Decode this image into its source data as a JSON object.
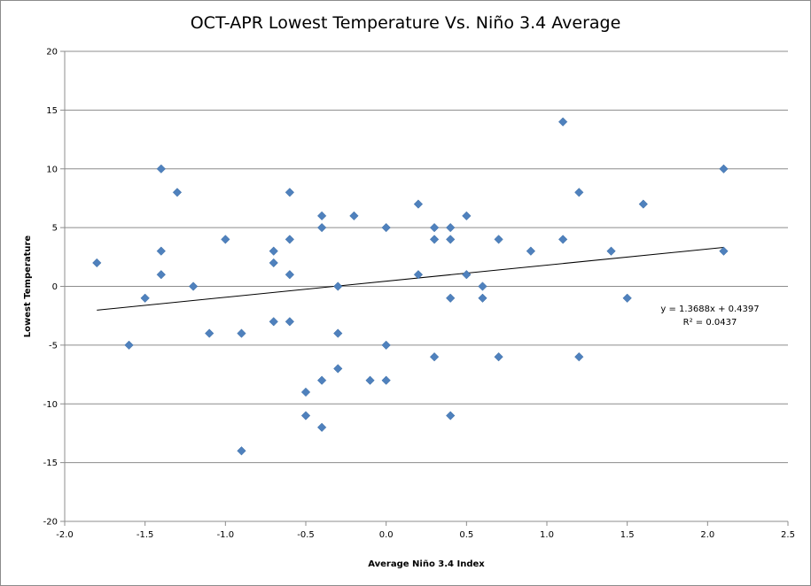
{
  "chart_data": {
    "type": "scatter",
    "title": "OCT-APR Lowest Temperature Vs. Niño 3.4 Average",
    "xlabel": "Average Niño 3.4 Index",
    "ylabel": "Lowest Temperature",
    "xlim": [
      -2.0,
      2.5
    ],
    "ylim": [
      -20,
      20
    ],
    "x_ticks": [
      -2.0,
      -1.5,
      -1.0,
      -0.5,
      0.0,
      0.5,
      1.0,
      1.5,
      2.0,
      2.5
    ],
    "x_tick_labels": [
      "-2.0",
      "-1.5",
      "-1.0",
      "-0.5",
      "0.0",
      "0.5",
      "1.0",
      "1.5",
      "2.0",
      "2.5"
    ],
    "y_ticks": [
      -20,
      -15,
      -10,
      -5,
      0,
      5,
      10,
      15,
      20
    ],
    "y_tick_labels": [
      "-20",
      "-15",
      "-10",
      "-5",
      "0",
      "5",
      "10",
      "15",
      "20"
    ],
    "grid": "horizontal",
    "marker_color": "#4f81bd",
    "points": [
      {
        "x": -1.8,
        "y": 2
      },
      {
        "x": -1.6,
        "y": -5
      },
      {
        "x": -1.5,
        "y": -1
      },
      {
        "x": -1.4,
        "y": 10
      },
      {
        "x": -1.4,
        "y": 3
      },
      {
        "x": -1.4,
        "y": 1
      },
      {
        "x": -1.3,
        "y": 8
      },
      {
        "x": -1.2,
        "y": 0
      },
      {
        "x": -1.1,
        "y": -4
      },
      {
        "x": -1.0,
        "y": 4
      },
      {
        "x": -0.9,
        "y": -4
      },
      {
        "x": -0.9,
        "y": -14
      },
      {
        "x": -0.7,
        "y": 3
      },
      {
        "x": -0.7,
        "y": 2
      },
      {
        "x": -0.7,
        "y": -3
      },
      {
        "x": -0.6,
        "y": 8
      },
      {
        "x": -0.6,
        "y": 4
      },
      {
        "x": -0.6,
        "y": 1
      },
      {
        "x": -0.6,
        "y": -3
      },
      {
        "x": -0.5,
        "y": -9
      },
      {
        "x": -0.5,
        "y": -11
      },
      {
        "x": -0.4,
        "y": 6
      },
      {
        "x": -0.4,
        "y": 5
      },
      {
        "x": -0.4,
        "y": -8
      },
      {
        "x": -0.4,
        "y": -12
      },
      {
        "x": -0.3,
        "y": 0
      },
      {
        "x": -0.3,
        "y": -4
      },
      {
        "x": -0.3,
        "y": -7
      },
      {
        "x": -0.2,
        "y": 6
      },
      {
        "x": -0.1,
        "y": -8
      },
      {
        "x": 0.0,
        "y": 5
      },
      {
        "x": 0.0,
        "y": -5
      },
      {
        "x": 0.0,
        "y": -8
      },
      {
        "x": 0.2,
        "y": 7
      },
      {
        "x": 0.2,
        "y": 1
      },
      {
        "x": 0.3,
        "y": 5
      },
      {
        "x": 0.3,
        "y": 4
      },
      {
        "x": 0.3,
        "y": -6
      },
      {
        "x": 0.4,
        "y": 5
      },
      {
        "x": 0.4,
        "y": 4
      },
      {
        "x": 0.4,
        "y": -1
      },
      {
        "x": 0.4,
        "y": -11
      },
      {
        "x": 0.5,
        "y": 6
      },
      {
        "x": 0.5,
        "y": 1
      },
      {
        "x": 0.6,
        "y": 0
      },
      {
        "x": 0.6,
        "y": -1
      },
      {
        "x": 0.7,
        "y": 4
      },
      {
        "x": 0.7,
        "y": -6
      },
      {
        "x": 0.9,
        "y": 3
      },
      {
        "x": 1.1,
        "y": 14
      },
      {
        "x": 1.1,
        "y": 4
      },
      {
        "x": 1.2,
        "y": 8
      },
      {
        "x": 1.2,
        "y": -6
      },
      {
        "x": 1.4,
        "y": 3
      },
      {
        "x": 1.5,
        "y": -1
      },
      {
        "x": 1.6,
        "y": 7
      },
      {
        "x": 2.1,
        "y": 10
      },
      {
        "x": 2.1,
        "y": 3
      }
    ],
    "trendline": {
      "type": "linear",
      "slope": 1.3688,
      "intercept": 0.4397,
      "x_range": [
        -1.8,
        2.1
      ],
      "equation": "y = 1.3688x + 0.4397",
      "r_squared_label": "R² = 0.0437"
    }
  }
}
